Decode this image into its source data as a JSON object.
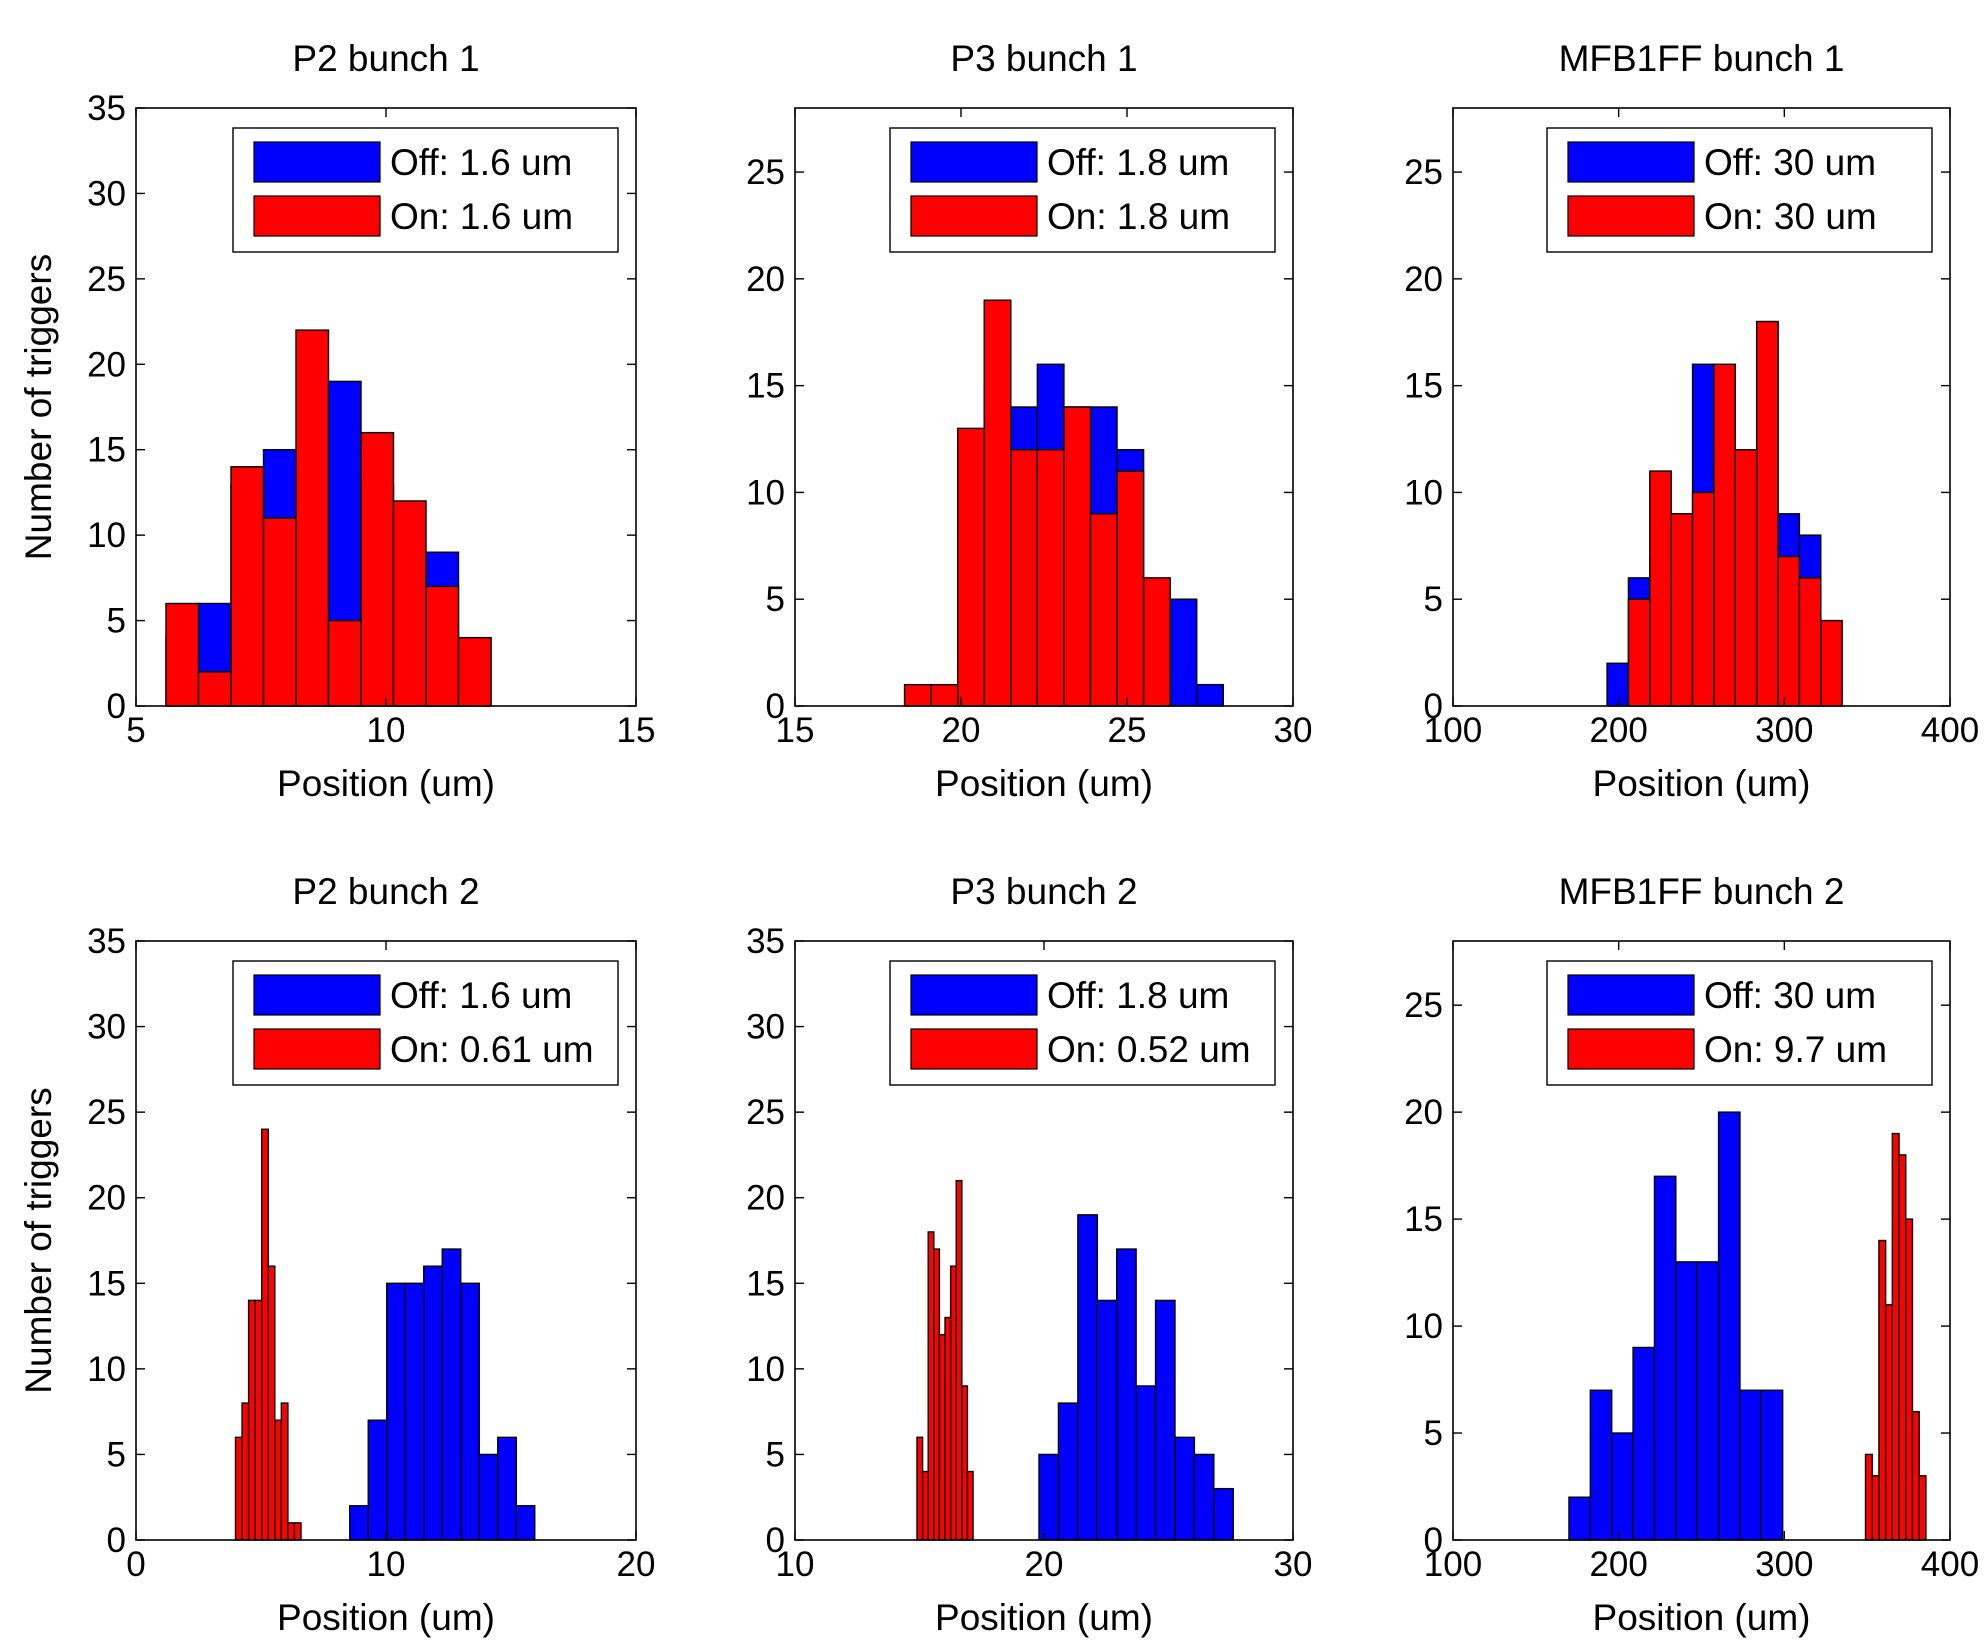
{
  "chart_data": [
    {
      "type": "bar",
      "title": "P2 bunch 1",
      "xlabel": "Position (um)",
      "ylabel": "Number of triggers",
      "xlim": [
        5,
        15
      ],
      "ylim": [
        0,
        35
      ],
      "xticks": [
        5,
        10,
        15
      ],
      "yticks": [
        0,
        5,
        10,
        15,
        20,
        25,
        30,
        35
      ],
      "legend_position": "top-right",
      "series": [
        {
          "name": "Off: 1.6 um",
          "color": "#0000ff",
          "bin_width": 0.65,
          "x": [
            5.6,
            6.25,
            6.9,
            7.55,
            8.2,
            8.85,
            9.5,
            10.15,
            10.8,
            11.45,
            12.1
          ],
          "values": [
            4,
            6,
            13,
            15,
            9,
            19,
            13,
            9,
            9,
            4,
            0
          ]
        },
        {
          "name": "On: 1.6 um",
          "color": "#ff0000",
          "bin_width": 0.65,
          "x": [
            5.6,
            6.25,
            6.9,
            7.55,
            8.2,
            8.85,
            9.5,
            10.15,
            10.8,
            11.45,
            12.1
          ],
          "values": [
            6,
            2,
            14,
            11,
            22,
            5,
            16,
            12,
            7,
            4,
            0
          ]
        }
      ]
    },
    {
      "type": "bar",
      "title": "P3 bunch 1",
      "xlabel": "Position (um)",
      "ylabel": "",
      "xlim": [
        15,
        30
      ],
      "ylim": [
        0,
        28
      ],
      "xticks": [
        15,
        20,
        25,
        30
      ],
      "yticks": [
        0,
        5,
        10,
        15,
        20,
        25
      ],
      "legend_position": "top-right",
      "series": [
        {
          "name": "Off: 1.8 um",
          "color": "#0000ff",
          "bin_width": 0.8,
          "x": [
            18.3,
            19.1,
            19.9,
            20.7,
            21.5,
            22.3,
            23.1,
            23.9,
            24.7,
            25.5,
            26.3,
            27.1
          ],
          "values": [
            0,
            0,
            8,
            15,
            14,
            16,
            14,
            14,
            12,
            4,
            5,
            1
          ]
        },
        {
          "name": "On: 1.8 um",
          "color": "#ff0000",
          "bin_width": 0.8,
          "x": [
            18.3,
            19.1,
            19.9,
            20.7,
            21.5,
            22.3,
            23.1,
            23.9,
            24.7,
            25.5,
            26.3,
            27.1
          ],
          "values": [
            1,
            1,
            13,
            19,
            12,
            12,
            14,
            9,
            11,
            6,
            0,
            0
          ]
        }
      ]
    },
    {
      "type": "bar",
      "title": "MFB1FF bunch 1",
      "xlabel": "Position (um)",
      "ylabel": "",
      "xlim": [
        100,
        400
      ],
      "ylim": [
        0,
        28
      ],
      "xticks": [
        100,
        200,
        300,
        400
      ],
      "yticks": [
        0,
        5,
        10,
        15,
        20,
        25
      ],
      "legend_position": "top-right",
      "series": [
        {
          "name": "Off: 30 um",
          "color": "#0000ff",
          "bin_width": 12.9,
          "x": [
            193,
            205.9,
            218.8,
            231.7,
            244.6,
            257.5,
            270.4,
            283.3,
            296.2,
            309.1,
            322
          ],
          "values": [
            2,
            6,
            7,
            9,
            16,
            11,
            11,
            18,
            9,
            8,
            0
          ]
        },
        {
          "name": "On: 30 um",
          "color": "#ff0000",
          "bin_width": 12.9,
          "x": [
            193,
            205.9,
            218.8,
            231.7,
            244.6,
            257.5,
            270.4,
            283.3,
            296.2,
            309.1,
            322
          ],
          "values": [
            0,
            5,
            11,
            9,
            10,
            16,
            12,
            18,
            7,
            6,
            4
          ]
        }
      ]
    },
    {
      "type": "bar",
      "title": "P2 bunch 2",
      "xlabel": "Position (um)",
      "ylabel": "Number of triggers",
      "xlim": [
        0,
        20
      ],
      "ylim": [
        0,
        35
      ],
      "xticks": [
        0,
        10,
        20
      ],
      "yticks": [
        0,
        5,
        10,
        15,
        20,
        25,
        30,
        35
      ],
      "legend_position": "top-right",
      "series": [
        {
          "name": "Off: 1.6 um",
          "color": "#0000ff",
          "bin_width": 0.74,
          "x": [
            8.55,
            9.29,
            10.03,
            10.77,
            11.51,
            12.25,
            12.99,
            13.73,
            14.47,
            15.21
          ],
          "values": [
            2,
            7,
            15,
            15,
            16,
            17,
            15,
            5,
            6,
            2
          ]
        },
        {
          "name": "On: 0.61 um",
          "color": "#ff0000",
          "bin_width": 0.262,
          "x": [
            3.98,
            4.242,
            4.504,
            4.766,
            5.028,
            5.29,
            5.552,
            5.814,
            6.076,
            6.338,
            6.6
          ],
          "values": [
            6,
            8,
            14,
            14,
            24,
            16,
            7,
            8,
            1,
            1,
            0
          ]
        }
      ]
    },
    {
      "type": "bar",
      "title": "P3 bunch 2",
      "xlabel": "Position (um)",
      "ylabel": "",
      "xlim": [
        10,
        30
      ],
      "ylim": [
        0,
        35
      ],
      "xticks": [
        10,
        20,
        30
      ],
      "yticks": [
        0,
        5,
        10,
        15,
        20,
        25,
        30,
        35
      ],
      "legend_position": "top-right",
      "series": [
        {
          "name": "Off: 1.8 um",
          "color": "#0000ff",
          "bin_width": 0.78,
          "x": [
            19.8,
            20.58,
            21.36,
            22.14,
            22.92,
            23.7,
            24.48,
            25.26,
            26.04,
            26.82
          ],
          "values": [
            5,
            8,
            19,
            14,
            17,
            9,
            14,
            6,
            5,
            3
          ]
        },
        {
          "name": "On: 0.52 um",
          "color": "#ff0000",
          "bin_width": 0.225,
          "x": [
            14.9,
            15.125,
            15.35,
            15.575,
            15.8,
            16.025,
            16.25,
            16.475,
            16.7,
            16.925
          ],
          "values": [
            6,
            4,
            18,
            17,
            12,
            13,
            16,
            21,
            9,
            4
          ]
        }
      ]
    },
    {
      "type": "bar",
      "title": "MFB1FF bunch 2",
      "xlabel": "Position (um)",
      "ylabel": "",
      "xlim": [
        100,
        400
      ],
      "ylim": [
        0,
        28
      ],
      "xticks": [
        100,
        200,
        300,
        400
      ],
      "yticks": [
        0,
        5,
        10,
        15,
        20,
        25
      ],
      "legend_position": "top-right",
      "series": [
        {
          "name": "Off: 30 um",
          "color": "#0000ff",
          "bin_width": 12.9,
          "x": [
            170,
            182.9,
            195.8,
            208.7,
            221.6,
            234.5,
            247.4,
            260.3,
            273.2,
            286.1
          ],
          "values": [
            2,
            7,
            5,
            9,
            17,
            13,
            13,
            20,
            7,
            7
          ]
        },
        {
          "name": "On: 9.7 um",
          "color": "#ff0000",
          "bin_width": 4.05,
          "x": [
            349,
            353.05,
            357.1,
            361.15,
            365.2,
            369.25,
            373.3,
            377.35,
            381.4,
            385.45
          ],
          "values": [
            4,
            3,
            14,
            11,
            19,
            18,
            15,
            6,
            3,
            0
          ]
        }
      ]
    }
  ]
}
